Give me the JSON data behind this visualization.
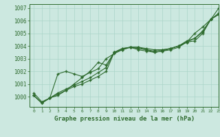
{
  "title": "Graphe pression niveau de la mer (hPa)",
  "bg_color": "#cce8e0",
  "grid_color": "#aad4c8",
  "line_color": "#2d6a2d",
  "xlim": [
    -0.5,
    23
  ],
  "ylim": [
    999.2,
    1007.3
  ],
  "yticks": [
    1000,
    1001,
    1002,
    1003,
    1004,
    1005,
    1006,
    1007
  ],
  "xticks": [
    0,
    1,
    2,
    3,
    4,
    5,
    6,
    7,
    8,
    9,
    10,
    11,
    12,
    13,
    14,
    15,
    16,
    17,
    18,
    19,
    20,
    21,
    22,
    23
  ],
  "series": [
    [
      1000.1,
      999.5,
      999.9,
      1000.1,
      1000.5,
      1000.8,
      1001.0,
      1001.3,
      1001.6,
      1002.0,
      1003.5,
      1003.7,
      1003.9,
      1003.9,
      1003.8,
      1003.7,
      1003.7,
      1003.8,
      1004.0,
      1004.3,
      1004.4,
      1005.0,
      1006.1,
      1006.5
    ],
    [
      1000.1,
      999.5,
      999.9,
      1000.3,
      1000.6,
      1000.9,
      1001.2,
      1001.5,
      1001.9,
      1002.3,
      1003.5,
      1003.8,
      1003.9,
      1003.9,
      1003.7,
      1003.5,
      1003.6,
      1003.7,
      1003.9,
      1004.3,
      1004.6,
      1005.1,
      1006.1,
      1006.5
    ],
    [
      1000.1,
      999.5,
      999.9,
      1001.8,
      1002.0,
      1001.8,
      1001.6,
      1001.9,
      1002.2,
      1003.0,
      1003.4,
      1003.7,
      1003.9,
      1003.8,
      1003.7,
      1003.6,
      1003.7,
      1003.8,
      1004.0,
      1004.4,
      1004.6,
      1005.2,
      1006.1,
      1006.6
    ],
    [
      1000.3,
      999.6,
      999.9,
      1000.2,
      1000.5,
      1001.0,
      1001.5,
      1002.0,
      1002.7,
      1002.5,
      1003.5,
      1003.8,
      1003.9,
      1003.7,
      1003.6,
      1003.5,
      1003.6,
      1003.8,
      1004.0,
      1004.3,
      1005.0,
      1005.5,
      1006.1,
      1007.0
    ]
  ]
}
